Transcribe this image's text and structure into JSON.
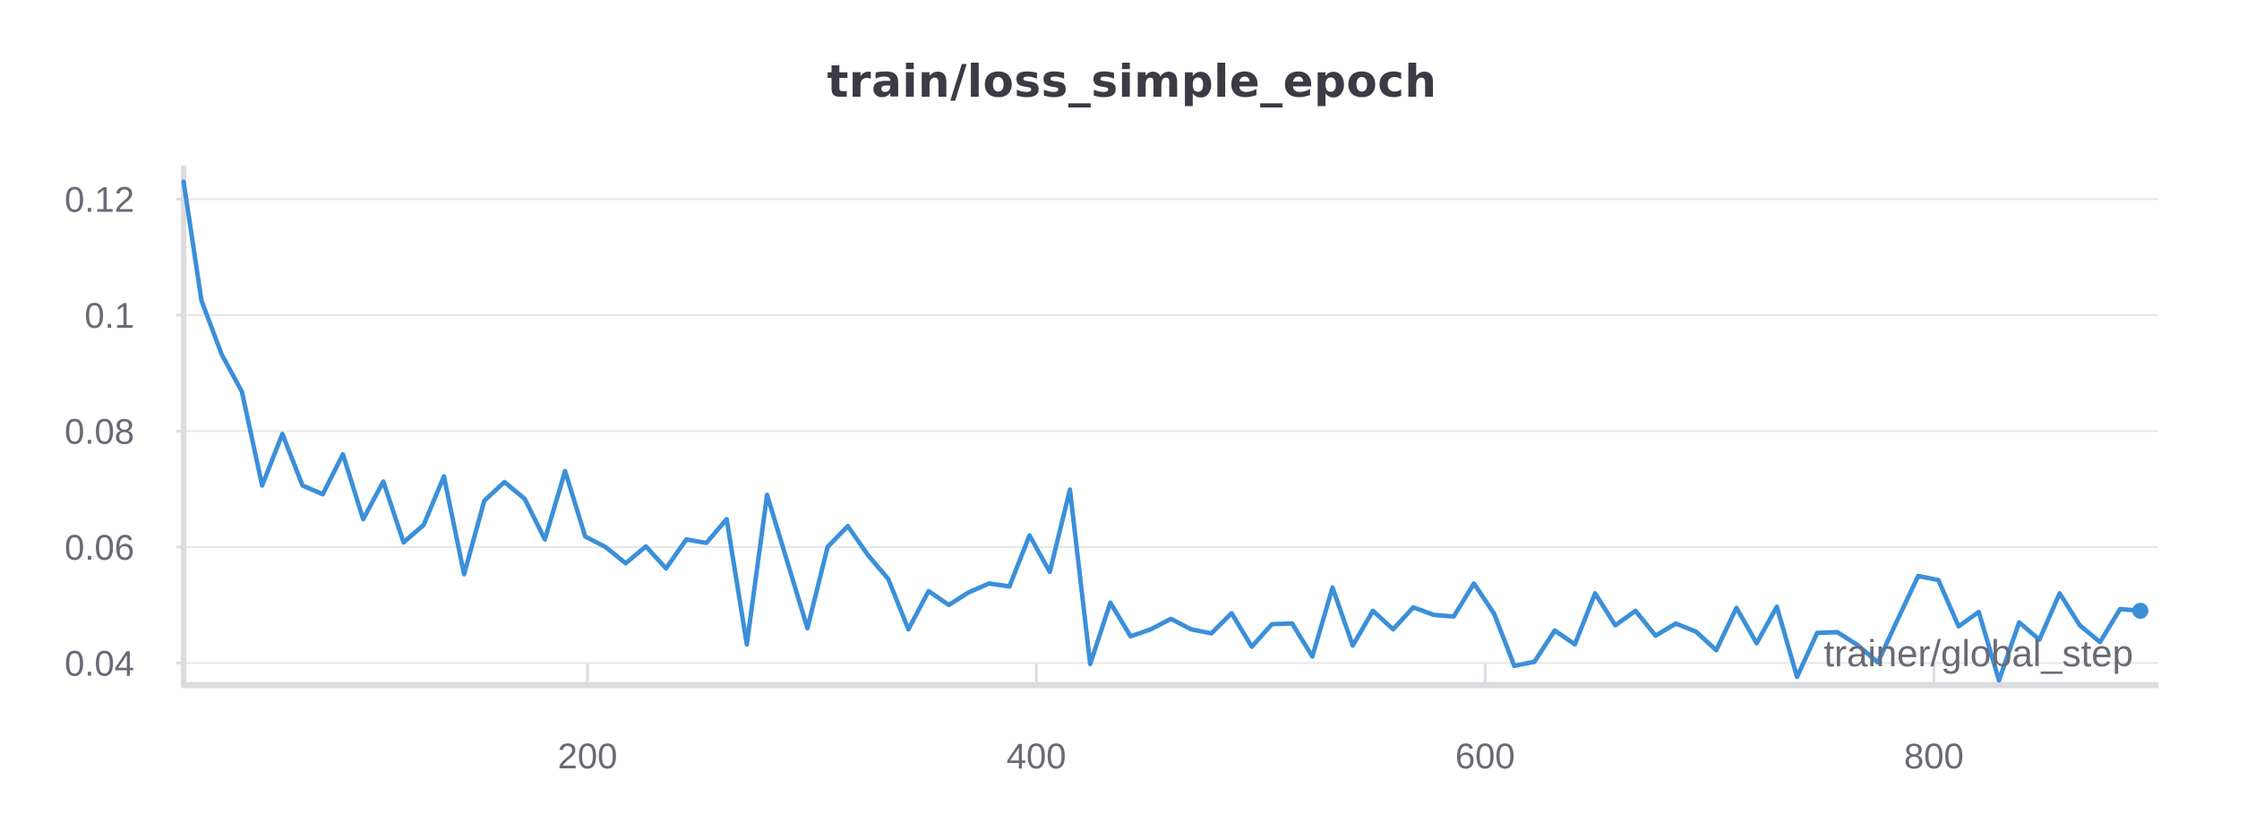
{
  "chart_data": {
    "type": "line",
    "title": "train/loss_simple_epoch",
    "xlabel": "trainer/global_step",
    "ylabel": "",
    "xlim": [
      20,
      900
    ],
    "ylim": [
      0.0365,
      0.125
    ],
    "x_ticks": [
      200,
      400,
      600,
      800
    ],
    "y_ticks": [
      0.04,
      0.06,
      0.08,
      0.1,
      0.12
    ],
    "y_tick_labels": [
      "0.04",
      "0.06",
      "0.08",
      "0.1",
      "0.12"
    ],
    "grid": "horizontal",
    "line_color": "#3b8fd9",
    "series": [
      {
        "x": [
          20,
          28,
          37,
          46,
          55,
          64,
          73,
          82,
          91,
          100,
          109,
          118,
          127,
          136,
          145,
          154,
          163,
          172,
          181,
          190,
          199,
          208,
          217,
          226,
          235,
          244,
          253,
          262,
          271,
          280,
          289,
          298,
          307,
          316,
          325,
          334,
          343,
          352,
          361,
          370,
          379,
          388,
          397,
          406,
          415,
          424,
          433,
          442,
          451,
          460,
          469,
          478,
          487,
          496,
          505,
          514,
          523,
          532,
          541,
          550,
          559,
          568,
          577,
          586,
          595,
          604,
          613,
          622,
          631,
          640,
          649,
          658,
          667,
          676,
          685,
          694,
          703,
          712,
          721,
          730,
          739,
          748,
          757,
          766,
          775,
          784,
          793,
          802,
          811,
          820,
          829,
          838,
          847,
          856,
          865,
          874,
          883,
          892
        ],
        "y": [
          0.123,
          0.1025,
          0.0932,
          0.0868,
          0.0706,
          0.0795,
          0.0706,
          0.0691,
          0.076,
          0.0648,
          0.0713,
          0.0608,
          0.0638,
          0.0722,
          0.0553,
          0.068,
          0.0712,
          0.0683,
          0.0613,
          0.0731,
          0.0618,
          0.06,
          0.0572,
          0.0601,
          0.0563,
          0.0613,
          0.0607,
          0.0648,
          0.0432,
          0.069,
          0.0575,
          0.046,
          0.06,
          0.0636,
          0.0586,
          0.0545,
          0.0458,
          0.0524,
          0.05,
          0.0522,
          0.0537,
          0.0532,
          0.062,
          0.0557,
          0.0699,
          0.0398,
          0.0504,
          0.0446,
          0.0458,
          0.0476,
          0.0458,
          0.0451,
          0.0486,
          0.0428,
          0.0467,
          0.0468,
          0.0411,
          0.053,
          0.043,
          0.049,
          0.0458,
          0.0496,
          0.0483,
          0.048,
          0.0537,
          0.0485,
          0.0395,
          0.0402,
          0.0456,
          0.0432,
          0.052,
          0.0465,
          0.049,
          0.0447,
          0.0468,
          0.0454,
          0.0422,
          0.0495,
          0.0434,
          0.0497,
          0.0376,
          0.0452,
          0.0453,
          0.0431,
          0.0401,
          0.0476,
          0.055,
          0.0543,
          0.0463,
          0.0488,
          0.037,
          0.047,
          0.044,
          0.052,
          0.0465,
          0.0436,
          0.0493,
          0.049
        ]
      }
    ]
  }
}
